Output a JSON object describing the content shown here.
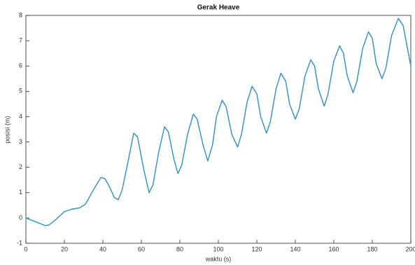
{
  "chart_data": {
    "type": "line",
    "title": "Gerak Heave",
    "x_label": "waktu (s)",
    "y_label": "posisi (m)",
    "x": [
      0,
      5,
      10,
      12,
      15,
      20,
      24,
      28,
      31,
      35,
      39,
      41,
      43,
      46,
      48,
      50,
      53,
      56,
      58,
      61,
      64,
      66,
      69,
      72,
      74,
      77,
      79,
      81,
      84,
      87,
      89,
      92,
      94.5,
      97,
      99,
      102,
      104,
      107,
      110,
      112,
      115,
      117.5,
      120,
      122,
      125,
      127,
      130,
      132.5,
      135,
      137,
      140,
      142,
      145,
      148,
      150,
      152,
      155,
      157,
      160,
      163,
      165,
      167,
      170,
      172,
      175,
      178,
      180,
      182,
      185,
      187,
      190,
      193.5,
      196,
      200
    ],
    "series": [
      {
        "name": "posisi",
        "color": "#2f8ec8",
        "values": [
          0,
          -0.15,
          -0.3,
          -0.28,
          -0.1,
          0.25,
          0.35,
          0.4,
          0.55,
          1.1,
          1.6,
          1.55,
          1.3,
          0.8,
          0.72,
          1.1,
          2.2,
          3.35,
          3.2,
          2.0,
          1.0,
          1.3,
          2.6,
          3.6,
          3.4,
          2.3,
          1.75,
          2.1,
          3.3,
          4.1,
          3.9,
          2.9,
          2.25,
          2.9,
          4.0,
          4.65,
          4.4,
          3.3,
          2.8,
          3.3,
          4.6,
          5.2,
          4.9,
          4.0,
          3.35,
          3.8,
          5.1,
          5.72,
          5.4,
          4.5,
          3.9,
          4.3,
          5.6,
          6.25,
          6.0,
          5.1,
          4.42,
          4.9,
          6.2,
          6.8,
          6.5,
          5.6,
          4.95,
          5.4,
          6.7,
          7.35,
          7.1,
          6.1,
          5.5,
          5.9,
          7.2,
          7.88,
          7.6,
          6.0
        ]
      }
    ],
    "xlim": [
      0,
      200
    ],
    "xticks": [
      0,
      20,
      40,
      60,
      80,
      100,
      120,
      140,
      160,
      180,
      200
    ],
    "ylim": [
      -1,
      8
    ],
    "yticks": [
      -1,
      0,
      1,
      2,
      3,
      4,
      5,
      6,
      7,
      8
    ]
  }
}
